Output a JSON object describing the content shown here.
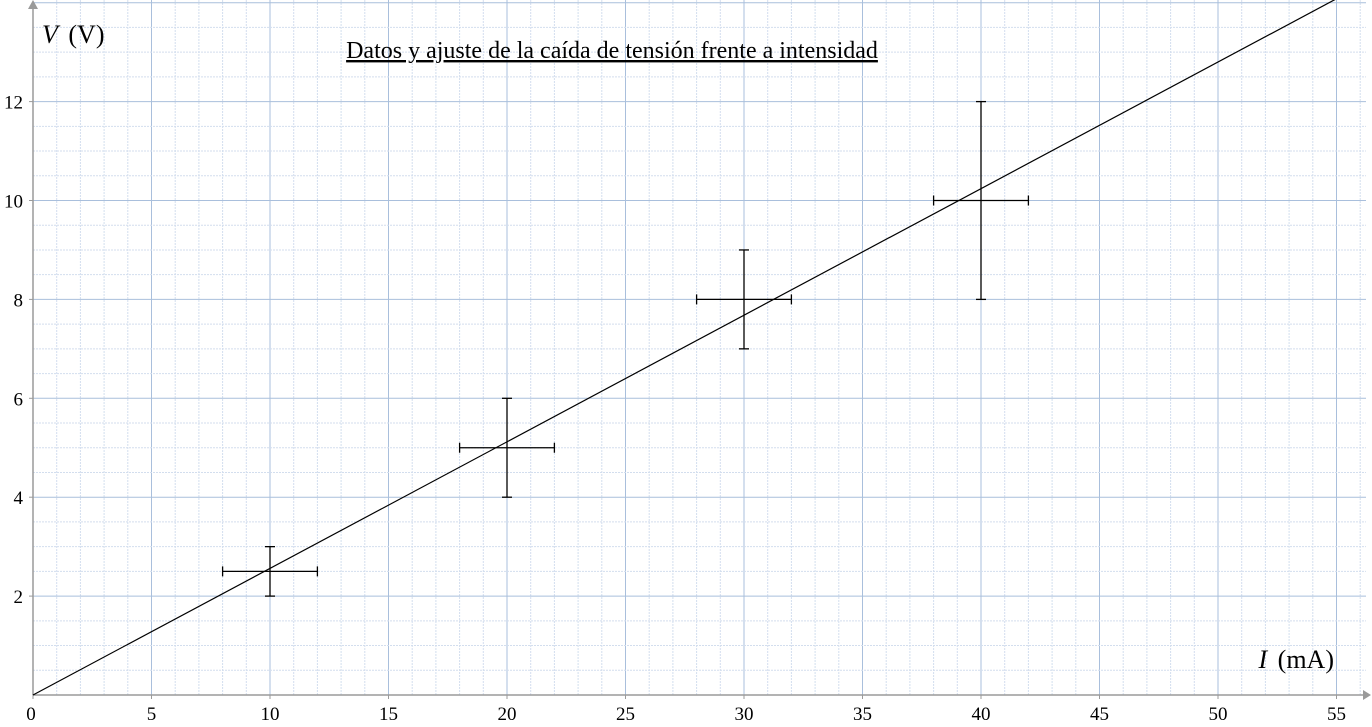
{
  "chart_data": {
    "type": "scatter",
    "title": "Datos y ajuste de la caída de tensión frente a intensidad",
    "xlabel_symbol": "I",
    "xlabel_unit": "(mA)",
    "ylabel_symbol": "V",
    "ylabel_unit": "(V)",
    "xlim": [
      0,
      57
    ],
    "ylim": [
      0,
      14
    ],
    "x_ticks": [
      0,
      5,
      10,
      15,
      20,
      25,
      30,
      35,
      40,
      45,
      50,
      55
    ],
    "y_ticks": [
      2,
      4,
      6,
      8,
      10,
      12
    ],
    "grid": true,
    "points": [
      {
        "x": 10,
        "y": 2.5,
        "x_err": 2,
        "y_err": 0.5
      },
      {
        "x": 20,
        "y": 5,
        "x_err": 2,
        "y_err": 1
      },
      {
        "x": 30,
        "y": 8,
        "x_err": 2,
        "y_err": 1
      },
      {
        "x": 40,
        "y": 10,
        "x_err": 2,
        "y_err": 2
      }
    ],
    "fit_line": {
      "slope": 0.256,
      "intercept": 0
    }
  },
  "colors": {
    "grid_major": "#a9bfdc",
    "grid_minor": "#d3deee",
    "axis": "#9a9a9a",
    "marks": "#000000"
  }
}
